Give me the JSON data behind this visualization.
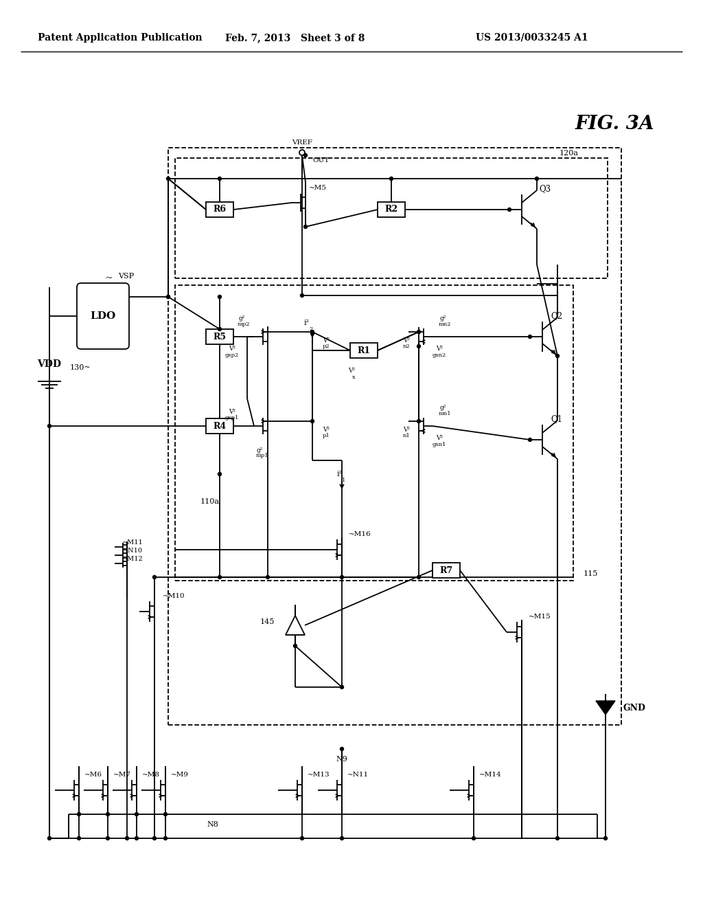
{
  "bg_color": "#ffffff",
  "line_color": "#000000",
  "header_left": "Patent Application Publication",
  "header_mid": "Feb. 7, 2013   Sheet 3 of 8",
  "header_right": "US 2013/0033245 A1",
  "fig_label": "FIG. 3A"
}
